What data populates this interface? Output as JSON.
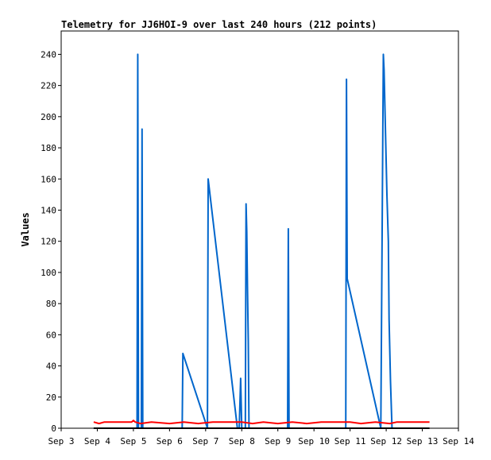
{
  "chart_data": {
    "type": "line",
    "title": "Telemetry for JJ6HOI-9 over last 240 hours (212 points)",
    "ylabel": "Values",
    "xlabel": "",
    "ylim": [
      0,
      255
    ],
    "y_ticks": [
      0,
      20,
      40,
      60,
      80,
      100,
      120,
      140,
      160,
      180,
      200,
      220,
      240
    ],
    "xlim": [
      "Sep 3",
      "Sep 14"
    ],
    "x_tick_labels": [
      "Sep 3",
      "Sep 4",
      "Sep 5",
      "Sep 6",
      "Sep 7",
      "Sep 8",
      "Sep 9",
      "Sep 10",
      "Sep 11",
      "Sep 12",
      "Sep 13",
      "Sep 14"
    ],
    "grid": false,
    "legend": "none",
    "series": [
      {
        "color": "#0066cc",
        "points": [
          [
            3.9,
            0
          ],
          [
            5.1,
            0
          ],
          [
            5.12,
            240
          ],
          [
            5.14,
            0
          ],
          [
            5.22,
            0
          ],
          [
            5.24,
            192
          ],
          [
            5.26,
            0
          ],
          [
            6.35,
            0
          ],
          [
            6.37,
            48
          ],
          [
            7.05,
            0
          ],
          [
            7.07,
            160
          ],
          [
            7.88,
            0
          ],
          [
            7.93,
            0
          ],
          [
            7.97,
            32
          ],
          [
            8.0,
            0
          ],
          [
            8.1,
            0
          ],
          [
            8.12,
            144
          ],
          [
            8.14,
            126
          ],
          [
            8.16,
            90
          ],
          [
            8.18,
            56
          ],
          [
            8.2,
            0
          ],
          [
            9.27,
            0
          ],
          [
            9.29,
            128
          ],
          [
            9.31,
            0
          ],
          [
            10.88,
            0
          ],
          [
            10.9,
            224
          ],
          [
            10.92,
            96
          ],
          [
            11.85,
            0
          ],
          [
            11.92,
            240
          ],
          [
            11.94,
            230
          ],
          [
            11.96,
            210
          ],
          [
            11.98,
            190
          ],
          [
            12.0,
            170
          ],
          [
            12.02,
            150
          ],
          [
            12.06,
            120
          ],
          [
            12.08,
            70
          ],
          [
            12.12,
            30
          ],
          [
            12.16,
            0
          ],
          [
            13.15,
            0
          ]
        ]
      },
      {
        "color": "#ff0000",
        "points": [
          [
            3.9,
            4
          ],
          [
            4.05,
            3
          ],
          [
            4.2,
            4
          ],
          [
            4.5,
            4
          ],
          [
            4.95,
            4
          ],
          [
            5.0,
            5
          ],
          [
            5.05,
            4
          ],
          [
            5.2,
            3
          ],
          [
            5.5,
            4
          ],
          [
            6.0,
            3
          ],
          [
            6.4,
            4
          ],
          [
            6.8,
            3
          ],
          [
            7.2,
            4
          ],
          [
            7.6,
            4
          ],
          [
            8.0,
            4
          ],
          [
            8.3,
            3
          ],
          [
            8.6,
            4
          ],
          [
            9.0,
            3
          ],
          [
            9.4,
            4
          ],
          [
            9.8,
            3
          ],
          [
            10.2,
            4
          ],
          [
            10.6,
            4
          ],
          [
            11.0,
            4
          ],
          [
            11.3,
            3
          ],
          [
            11.7,
            4
          ],
          [
            12.1,
            3
          ],
          [
            12.3,
            4
          ],
          [
            12.6,
            4
          ],
          [
            13.2,
            4
          ]
        ]
      },
      {
        "color": "#000000",
        "points": [
          [
            3.9,
            0
          ],
          [
            13.2,
            0
          ]
        ]
      }
    ]
  }
}
